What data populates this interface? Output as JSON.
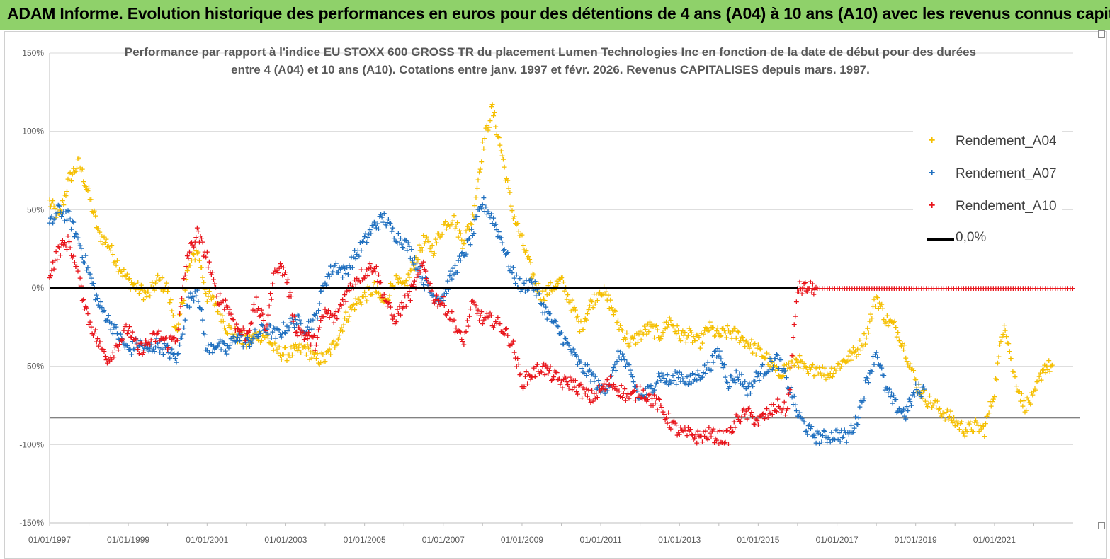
{
  "header": {
    "title": "ADAM Informe. Evolution historique des performances en euros pour des détentions de 4 ans (A04) à 10 ans (A10) avec les revenus connus capitalisés"
  },
  "colors": {
    "header_bg": "#8fd16a",
    "a04": "#f5bf00",
    "a07": "#1f6fbf",
    "a10": "#e8141b",
    "zero_line": "#000000"
  },
  "chart_data": {
    "type": "scatter",
    "title_lines": [
      "Performance par rapport à l'indice EU STOXX 600 GROSS TR  du placement Lumen Technologies Inc en fonction de la date de début pour des durées",
      "entre 4 (A04) et 10 ans (A10).  Cotations entre janv. 1997 et févr. 2026. Revenus CAPITALISES depuis mars. 1997."
    ],
    "xlabel": "",
    "ylabel": "",
    "x_tick_labels": [
      "01/01/1997",
      "01/01/1999",
      "01/01/2001",
      "01/01/2003",
      "01/01/2005",
      "01/01/2007",
      "01/01/2009",
      "01/01/2011",
      "01/01/2013",
      "01/01/2015",
      "01/01/2017",
      "01/01/2019",
      "01/01/2021"
    ],
    "xlim": [
      "1997-01-01",
      "2023-01-01"
    ],
    "y_tick_labels": [
      "150%",
      "100%",
      "50%",
      "0%",
      "-50%",
      "-100%",
      "-150%"
    ],
    "y_ticks": [
      150,
      100,
      50,
      0,
      -50,
      -100,
      -150
    ],
    "ylim": [
      -150,
      150
    ],
    "grid": "horizontal",
    "legend_position": "top-right",
    "legend": [
      "Rendement_A04",
      "Rendement_A07",
      "Rendement_A10",
      "0,0%"
    ],
    "series": [
      {
        "name": "Rendement_A04",
        "marker": "+",
        "x": [
          "1997-01-01",
          "1997-04-01",
          "1997-07-01",
          "1997-10-01",
          "1998-01-01",
          "1998-04-01",
          "1998-07-01",
          "1998-10-01",
          "1999-01-01",
          "1999-04-01",
          "1999-07-01",
          "1999-10-01",
          "2000-01-01",
          "2000-04-01",
          "2000-07-01",
          "2000-10-01",
          "2001-01-01",
          "2001-04-01",
          "2001-07-01",
          "2001-10-01",
          "2002-01-01",
          "2002-04-01",
          "2002-07-01",
          "2002-10-01",
          "2003-01-01",
          "2003-04-01",
          "2003-07-01",
          "2003-10-01",
          "2004-01-01",
          "2004-04-01",
          "2004-07-01",
          "2004-10-01",
          "2005-01-01",
          "2005-04-01",
          "2005-07-01",
          "2005-10-01",
          "2006-01-01",
          "2006-04-01",
          "2006-07-01",
          "2006-10-01",
          "2007-01-01",
          "2007-04-01",
          "2007-07-01",
          "2007-10-01",
          "2008-01-01",
          "2008-04-01",
          "2008-07-01",
          "2008-10-01",
          "2009-01-01",
          "2009-04-01",
          "2009-07-01",
          "2009-10-01",
          "2010-01-01",
          "2010-04-01",
          "2010-07-01",
          "2010-10-01",
          "2011-01-01",
          "2011-04-01",
          "2011-07-01",
          "2011-10-01",
          "2012-01-01",
          "2012-04-01",
          "2012-07-01",
          "2012-10-01",
          "2013-01-01",
          "2013-04-01",
          "2013-07-01",
          "2013-10-01",
          "2014-01-01",
          "2014-04-01",
          "2014-07-01",
          "2014-10-01",
          "2015-01-01",
          "2015-04-01",
          "2015-07-01",
          "2015-10-01",
          "2016-01-01",
          "2016-04-01",
          "2016-07-01",
          "2016-10-01",
          "2017-01-01",
          "2017-04-01",
          "2017-07-01",
          "2017-10-01",
          "2018-01-01",
          "2018-04-01",
          "2018-07-01",
          "2018-10-01",
          "2019-01-01",
          "2019-04-01",
          "2019-07-01",
          "2019-10-01",
          "2020-01-01",
          "2020-04-01",
          "2020-07-01",
          "2020-10-01",
          "2021-01-01",
          "2021-04-01",
          "2021-07-01",
          "2021-10-01",
          "2022-01-01",
          "2022-04-01"
        ],
        "y": [
          55,
          45,
          70,
          80,
          60,
          35,
          28,
          15,
          5,
          0,
          -5,
          5,
          0,
          -30,
          10,
          25,
          -5,
          -10,
          -25,
          -30,
          -35,
          -30,
          -30,
          -40,
          -42,
          -40,
          -38,
          -45,
          -45,
          -35,
          -20,
          -10,
          -5,
          0,
          -10,
          5,
          0,
          15,
          30,
          25,
          40,
          45,
          30,
          45,
          90,
          115,
          85,
          50,
          30,
          10,
          -5,
          0,
          5,
          -10,
          -25,
          -10,
          0,
          -10,
          -25,
          -35,
          -30,
          -25,
          -30,
          -20,
          -30,
          -30,
          -35,
          -25,
          -30,
          -28,
          -30,
          -35,
          -40,
          -45,
          -55,
          -50,
          -45,
          -55,
          -50,
          -55,
          -50,
          -45,
          -40,
          -30,
          -5,
          -20,
          -25,
          -40,
          -60,
          -70,
          -75,
          -80,
          -85,
          -90,
          -88,
          -90,
          -65,
          -20,
          -55,
          -75,
          -70,
          -50
        ]
      },
      {
        "name": "Rendement_A07",
        "marker": "+",
        "x": [
          "1997-01-01",
          "1997-04-01",
          "1997-07-01",
          "1997-10-01",
          "1998-01-01",
          "1998-04-01",
          "1998-07-01",
          "1998-10-01",
          "1999-01-01",
          "1999-04-01",
          "1999-07-01",
          "1999-10-01",
          "2000-01-01",
          "2000-04-01",
          "2000-07-01",
          "2000-10-01",
          "2001-01-01",
          "2001-04-01",
          "2001-07-01",
          "2001-10-01",
          "2002-01-01",
          "2002-04-01",
          "2002-07-01",
          "2002-10-01",
          "2003-01-01",
          "2003-04-01",
          "2003-07-01",
          "2003-10-01",
          "2004-01-01",
          "2004-04-01",
          "2004-07-01",
          "2004-10-01",
          "2005-01-01",
          "2005-04-01",
          "2005-07-01",
          "2005-10-01",
          "2006-01-01",
          "2006-04-01",
          "2006-07-01",
          "2006-10-01",
          "2007-01-01",
          "2007-04-01",
          "2007-07-01",
          "2007-10-01",
          "2008-01-01",
          "2008-04-01",
          "2008-07-01",
          "2008-10-01",
          "2009-01-01",
          "2009-04-01",
          "2009-07-01",
          "2009-10-01",
          "2010-01-01",
          "2010-04-01",
          "2010-07-01",
          "2010-10-01",
          "2011-01-01",
          "2011-04-01",
          "2011-07-01",
          "2011-10-01",
          "2012-01-01",
          "2012-04-01",
          "2012-07-01",
          "2012-10-01",
          "2013-01-01",
          "2013-04-01",
          "2013-07-01",
          "2013-10-01",
          "2014-01-01",
          "2014-04-01",
          "2014-07-01",
          "2014-10-01",
          "2015-01-01",
          "2015-04-01",
          "2015-07-01",
          "2015-10-01",
          "2016-01-01",
          "2016-04-01",
          "2016-07-01",
          "2016-10-01",
          "2017-01-01",
          "2017-04-01",
          "2017-07-01",
          "2017-10-01",
          "2018-01-01",
          "2018-04-01",
          "2018-07-01",
          "2018-10-01",
          "2019-01-01"
        ],
        "y": [
          40,
          50,
          45,
          30,
          10,
          -10,
          -20,
          -30,
          -40,
          -35,
          -40,
          -35,
          -40,
          -45,
          -10,
          0,
          -40,
          -35,
          -40,
          -30,
          -35,
          -30,
          -25,
          -30,
          -25,
          -20,
          -25,
          -20,
          5,
          15,
          10,
          20,
          30,
          40,
          45,
          35,
          30,
          20,
          5,
          -5,
          -5,
          10,
          20,
          35,
          55,
          45,
          30,
          10,
          0,
          5,
          -10,
          -20,
          -30,
          -40,
          -50,
          -55,
          -65,
          -60,
          -40,
          -55,
          -70,
          -65,
          -55,
          -60,
          -55,
          -60,
          -55,
          -50,
          -40,
          -60,
          -55,
          -65,
          -55,
          -50,
          -45,
          -60,
          -80,
          -90,
          -95,
          -95,
          -93,
          -95,
          -85,
          -60,
          -40,
          -65,
          -75,
          -80,
          -65
        ]
      },
      {
        "name": "Rendement_A10",
        "marker": "+",
        "x": [
          "1997-01-01",
          "1997-04-01",
          "1997-07-01",
          "1997-10-01",
          "1998-01-01",
          "1998-04-01",
          "1998-07-01",
          "1998-10-01",
          "1999-01-01",
          "1999-04-01",
          "1999-07-01",
          "1999-10-01",
          "2000-01-01",
          "2000-04-01",
          "2000-07-01",
          "2000-10-01",
          "2001-01-01",
          "2001-04-01",
          "2001-07-01",
          "2001-10-01",
          "2002-01-01",
          "2002-04-01",
          "2002-07-01",
          "2002-10-01",
          "2003-01-01",
          "2003-04-01",
          "2003-07-01",
          "2003-10-01",
          "2004-01-01",
          "2004-04-01",
          "2004-07-01",
          "2004-10-01",
          "2005-01-01",
          "2005-04-01",
          "2005-07-01",
          "2005-10-01",
          "2006-01-01",
          "2006-04-01",
          "2006-07-01",
          "2006-10-01",
          "2007-01-01",
          "2007-04-01",
          "2007-07-01",
          "2007-10-01",
          "2008-01-01",
          "2008-04-01",
          "2008-07-01",
          "2008-10-01",
          "2009-01-01",
          "2009-04-01",
          "2009-07-01",
          "2009-10-01",
          "2010-01-01",
          "2010-04-01",
          "2010-07-01",
          "2010-10-01",
          "2011-01-01",
          "2011-04-01",
          "2011-07-01",
          "2011-10-01",
          "2012-01-01",
          "2012-04-01",
          "2012-07-01",
          "2012-10-01",
          "2013-01-01",
          "2013-04-01",
          "2013-07-01",
          "2013-10-01",
          "2014-01-01",
          "2014-04-01",
          "2014-07-01",
          "2014-10-01",
          "2015-01-01",
          "2015-04-01",
          "2015-07-01",
          "2015-10-01",
          "2016-01-01",
          "2016-04-01"
        ],
        "y": [
          10,
          25,
          30,
          5,
          -20,
          -35,
          -45,
          -35,
          -25,
          -40,
          -35,
          -30,
          -35,
          -30,
          20,
          35,
          20,
          -5,
          -10,
          -25,
          -30,
          -10,
          -25,
          15,
          10,
          -25,
          -30,
          -35,
          -15,
          -20,
          -5,
          5,
          10,
          15,
          -5,
          -20,
          -10,
          0,
          15,
          -5,
          -10,
          -20,
          -35,
          -10,
          -20,
          -20,
          -25,
          -35,
          -60,
          -55,
          -50,
          -55,
          -60,
          -60,
          -65,
          -70,
          -65,
          -60,
          -65,
          -70,
          -65,
          -70,
          -75,
          -85,
          -92,
          -93,
          -95,
          -93,
          -95,
          -95,
          -82,
          -80,
          -85,
          -80,
          -75,
          -78,
          0,
          0
        ]
      },
      {
        "name": "0,0%",
        "type": "line",
        "x": [
          "1997-01-01",
          "2023-01-01"
        ],
        "y": [
          0,
          0
        ]
      }
    ],
    "a10_zero_flat_range": [
      "2016-01-01",
      "2023-01-01"
    ]
  }
}
